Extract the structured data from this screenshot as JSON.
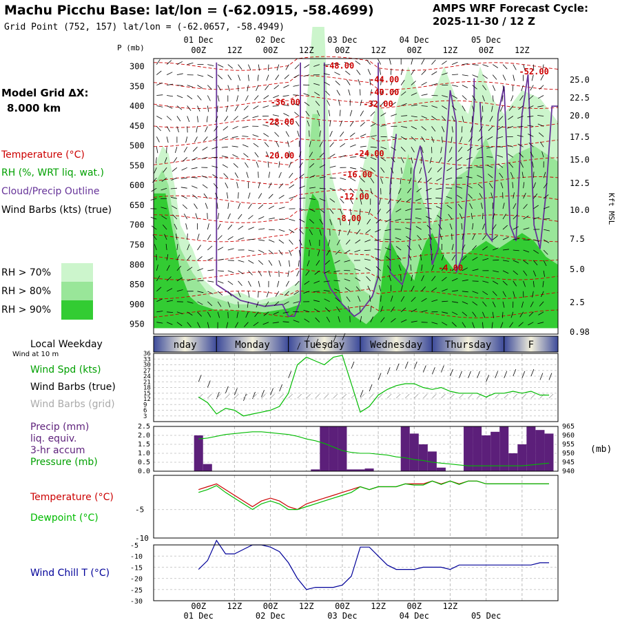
{
  "header": {
    "title": "Machu Picchu Base:  lat/lon = (-62.0915, -58.4699)",
    "grid_point": "Grid Point (752, 157) lat/lon = (-62.0657, -58.4949)",
    "cycle_label": "AMPS WRF Forecast Cycle:",
    "cycle_value": "2025-11-30 / 12  Z"
  },
  "left_panel": {
    "model_grid_title": "Model Grid ΔX:",
    "model_grid_value": "8.000 km",
    "temperature": "Temperature (°C)",
    "rh": "RH (%, WRT liq. wat.)",
    "cloud": "Cloud/Precip Outline",
    "wind_barbs": "Wind Barbs (kts) (true)",
    "rh70": "RH > 70%",
    "rh80": "RH > 80%",
    "rh90": "RH > 90%",
    "local_weekday": "Local Weekday",
    "wind10m": "Wind at 10 m",
    "wind_spd": "Wind Spd (kts)",
    "wind_barbs_true": "Wind Barbs (true)",
    "wind_barbs_grid": "Wind Barbs (grid)",
    "precip1": "Precip (mm)",
    "precip2": "liq. equiv.",
    "precip3": "3-hr accum",
    "pressure": "Pressure (mb)",
    "temp2": "Temperature (°C)",
    "dewpoint": "Dewpoint (°C)",
    "windchill": "Wind Chill T (°C)"
  },
  "colors": {
    "rh70": "#ccf5cc",
    "rh80": "#99e699",
    "rh90": "#33cc33",
    "temperature": "#cc0000",
    "rh_text": "#00a000",
    "cloud": "#663399",
    "dewpoint": "#00bb00",
    "windchill": "#000099",
    "precip": "#5c1f7a"
  },
  "time_axis": {
    "top_labels": [
      "00Z",
      "12Z",
      "00Z",
      "12Z",
      "00Z",
      "12Z",
      "00Z",
      "12Z",
      "00Z",
      "12Z"
    ],
    "day_labels": [
      "01 Dec",
      "02 Dec",
      "03 Dec",
      "04 Dec",
      "05 Dec"
    ],
    "bottom_labels": [
      "00Z",
      "12Z",
      "00Z",
      "12Z",
      "00Z",
      "12Z",
      "00Z",
      "12Z"
    ],
    "bottom_days": [
      "01 Dec",
      "02 Dec",
      "03 Dec",
      "04 Dec",
      "05 Dec"
    ]
  },
  "weekdays": [
    "nday",
    "Monday",
    "Tuesday",
    "Wednesday",
    "Thursday",
    "F"
  ],
  "units": {
    "pressure_axis": "P (mb)",
    "kft_axis": "Kft MSL",
    "mb": "(mb)"
  },
  "chart_data": [
    {
      "type": "heatmap",
      "name": "cross-section",
      "y_pressure_ticks": [
        "300",
        "350",
        "400",
        "450",
        "500",
        "550",
        "600",
        "650",
        "700",
        "750",
        "800",
        "850",
        "900",
        "950"
      ],
      "y_kft_ticks": [
        "25.0",
        "22.5",
        "20.0",
        "17.5",
        "15.0",
        "12.5",
        "10.0",
        "7.5",
        "5.0",
        "2.5",
        "0.98"
      ],
      "temperature_contours": [
        {
          "label": "-48.00",
          "hour": 42,
          "p": 305
        },
        {
          "label": "-44.00",
          "hour": 57,
          "p": 340
        },
        {
          "label": "-40.00",
          "hour": 57,
          "p": 372
        },
        {
          "label": "-36.00",
          "hour": 24,
          "p": 397
        },
        {
          "label": "-32.00",
          "hour": 55,
          "p": 402
        },
        {
          "label": "-28.00",
          "hour": 22,
          "p": 447
        },
        {
          "label": "-24.00",
          "hour": 52,
          "p": 527
        },
        {
          "label": "-20.00",
          "hour": 22,
          "p": 532
        },
        {
          "label": "-16.00",
          "hour": 48,
          "p": 580
        },
        {
          "label": "-12.00",
          "hour": 47,
          "p": 635
        },
        {
          "label": "-8.00",
          "hour": 46,
          "p": 690
        },
        {
          "label": "-4.00",
          "hour": 80,
          "p": 815
        },
        {
          "label": "-52.00",
          "hour": 107,
          "p": 320
        }
      ]
    },
    {
      "type": "line",
      "name": "wind-speed",
      "ytick_labels": [
        "36",
        "33",
        "30",
        "27",
        "24",
        "21",
        "18",
        "15",
        "12",
        "9",
        "6",
        "3"
      ],
      "ylim": [
        0,
        36
      ],
      "x_hours": [
        0,
        3,
        6,
        9,
        12,
        15,
        18,
        21,
        24,
        27,
        30,
        33,
        36,
        39,
        42,
        45,
        48,
        51,
        54,
        57,
        60,
        63,
        66,
        69,
        72,
        75,
        78,
        81,
        84,
        87,
        90,
        93,
        96,
        99,
        102,
        105,
        108,
        111,
        114,
        117
      ],
      "values": [
        13,
        10,
        4,
        7,
        6,
        3,
        4,
        5,
        6,
        8,
        15,
        30,
        34,
        32,
        30,
        34,
        35,
        20,
        5,
        8,
        14,
        17,
        19,
        20,
        20,
        18,
        17,
        18,
        16,
        15,
        15,
        15,
        13,
        15,
        15,
        16,
        15,
        16,
        14,
        14
      ]
    },
    {
      "type": "bar",
      "name": "precip-pressure",
      "precip_ytick_labels": [
        "2.5",
        "2.0",
        "1.5",
        "1.0",
        "0.5",
        "0.0"
      ],
      "pressure_ytick_labels": [
        "965",
        "960",
        "955",
        "950",
        "945",
        "940"
      ],
      "precip_ylim": [
        0,
        2.5
      ],
      "pressure_ylim": [
        940,
        965
      ],
      "x_hours": [
        0,
        3,
        6,
        9,
        12,
        15,
        18,
        21,
        24,
        27,
        30,
        33,
        36,
        39,
        42,
        45,
        48,
        51,
        54,
        57,
        60,
        63,
        66,
        69,
        72,
        75,
        78,
        81,
        84,
        87,
        90,
        93,
        96,
        99,
        102,
        105,
        108,
        111,
        114,
        117
      ],
      "precip": [
        2.0,
        0.4,
        0,
        0,
        0,
        0,
        0,
        0,
        0,
        0,
        0,
        0,
        0,
        0.1,
        2.5,
        2.5,
        2.5,
        0.1,
        0.1,
        0.15,
        0,
        0,
        0,
        2.5,
        2.1,
        1.5,
        1.1,
        0.2,
        0,
        0,
        2.5,
        2.5,
        2.0,
        2.2,
        2.5,
        1.0,
        1.5,
        2.5,
        2.3,
        2.1
      ],
      "pressure": [
        958,
        958.5,
        959.5,
        960.5,
        961,
        961.5,
        962,
        962,
        961.5,
        961,
        960.5,
        959.5,
        958,
        957,
        955.5,
        953.5,
        951.5,
        950.5,
        950,
        950,
        949.5,
        949,
        948,
        947.5,
        946.5,
        946,
        945,
        944.5,
        944,
        943.5,
        943,
        943,
        943,
        943,
        943,
        943,
        943,
        943.5,
        944,
        944.5
      ]
    },
    {
      "type": "line",
      "name": "temperature-dewpoint",
      "ytick_labels": [
        "-5",
        "-10"
      ],
      "ylim": [
        -10,
        1
      ],
      "x_hours": [
        0,
        3,
        6,
        9,
        12,
        15,
        18,
        21,
        24,
        27,
        30,
        33,
        36,
        39,
        42,
        45,
        48,
        51,
        54,
        57,
        60,
        63,
        66,
        69,
        72,
        75,
        78,
        81,
        84,
        87,
        90,
        93,
        96,
        99,
        102,
        105,
        108,
        111,
        114,
        117
      ],
      "series": [
        {
          "name": "Temperature",
          "values": [
            -1.5,
            -1,
            -0.5,
            -1.5,
            -2.5,
            -3.5,
            -4.5,
            -3.5,
            -3,
            -3.5,
            -4.5,
            -5,
            -4,
            -3.5,
            -3,
            -2.5,
            -2,
            -1.5,
            -1,
            -1.5,
            -1,
            -1,
            -1,
            -0.5,
            -0.5,
            -0.5,
            0,
            -0.5,
            0,
            -0.5,
            0,
            0,
            -0.5,
            -0.5,
            -0.5,
            -0.5,
            -0.5,
            -0.5,
            -0.5,
            -0.5
          ]
        },
        {
          "name": "Dewpoint",
          "values": [
            -2,
            -1.5,
            -0.8,
            -2,
            -3,
            -4,
            -5,
            -4,
            -3.5,
            -4,
            -5,
            -5,
            -4.5,
            -4,
            -3.5,
            -3,
            -2.5,
            -2,
            -1,
            -1.5,
            -1,
            -1,
            -1,
            -0.5,
            -0.7,
            -0.7,
            0,
            -0.6,
            0,
            -0.6,
            0,
            0,
            -0.5,
            -0.5,
            -0.5,
            -0.5,
            -0.5,
            -0.5,
            -0.5,
            -0.5
          ]
        }
      ]
    },
    {
      "type": "line",
      "name": "wind-chill",
      "ytick_labels": [
        "-5",
        "-10",
        "-15",
        "-20",
        "-25",
        "-30"
      ],
      "ylim": [
        -30,
        -5
      ],
      "x_hours": [
        0,
        3,
        6,
        9,
        12,
        15,
        18,
        21,
        24,
        27,
        30,
        33,
        36,
        39,
        42,
        45,
        48,
        51,
        54,
        57,
        60,
        63,
        66,
        69,
        72,
        75,
        78,
        81,
        84,
        87,
        90,
        93,
        96,
        99,
        102,
        105,
        108,
        111,
        114,
        117
      ],
      "values": [
        -16,
        -12,
        -3,
        -9,
        -9,
        -7,
        -5,
        -5,
        -6,
        -8,
        -13,
        -20,
        -25,
        -24,
        -24,
        -24,
        -23,
        -19,
        -6,
        -6,
        -10,
        -14,
        -16,
        -16,
        -16,
        -15,
        -15,
        -15,
        -16,
        -14,
        -14,
        -14,
        -14,
        -14,
        -14,
        -14,
        -14,
        -14,
        -13,
        -13
      ]
    }
  ]
}
